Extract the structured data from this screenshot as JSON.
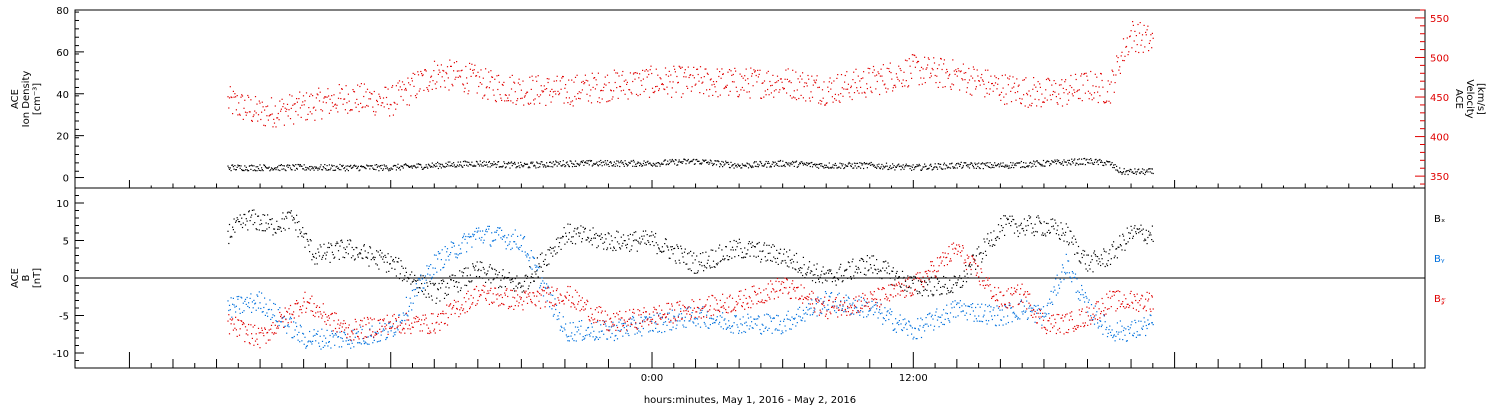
{
  "chart_data": [
    {
      "type": "scatter",
      "panel": "top",
      "ylabel_left": [
        "ACE",
        "Ion Density",
        "[cm⁻³]"
      ],
      "ylabel_right": [
        "ACE",
        "Velocity",
        "[km/s]"
      ],
      "ylim_left": [
        -5,
        80
      ],
      "ylim_right": [
        335,
        560
      ],
      "yticks_left": [
        0,
        20,
        40,
        60,
        80
      ],
      "yticks_right": [
        350,
        400,
        450,
        500,
        550
      ],
      "right_axis_color": "#e00000",
      "series": [
        {
          "name": "Velocity",
          "axis": "right",
          "color": "#e00000",
          "x": [
            -19.5,
            -18,
            -16,
            -14,
            -12,
            -10,
            -8.5,
            -7.5,
            -6,
            -4,
            -2,
            0,
            2,
            4,
            6,
            8,
            10,
            12,
            14,
            16,
            18,
            19,
            20,
            21,
            21.5,
            22,
            23
          ],
          "y": [
            445,
            430,
            438,
            450,
            445,
            480,
            475,
            465,
            460,
            458,
            465,
            470,
            470,
            468,
            470,
            460,
            470,
            485,
            478,
            462,
            455,
            458,
            465,
            460,
            500,
            530,
            520
          ]
        },
        {
          "name": "Ion Density",
          "axis": "left",
          "color": "#000000",
          "x": [
            -19.5,
            -18,
            -16,
            -14,
            -12,
            -10,
            -8,
            -6,
            -4,
            -2,
            0,
            2,
            4,
            6,
            8,
            10,
            12,
            14,
            16,
            18,
            20,
            21,
            21.5,
            22,
            23
          ],
          "y": [
            5,
            5,
            5,
            5,
            5,
            6,
            7,
            6,
            7,
            7,
            7,
            8,
            6,
            7,
            6,
            6,
            5,
            6,
            6,
            7,
            8,
            7,
            3,
            3,
            3
          ]
        }
      ]
    },
    {
      "type": "scatter",
      "panel": "bottom",
      "ylabel": [
        "ACE",
        "B",
        "[nT]"
      ],
      "ylim": [
        -12,
        12
      ],
      "yticks": [
        -10,
        -5,
        0,
        5,
        10
      ],
      "zero_line": true,
      "legend_position": "right",
      "legend": [
        "Bₓ",
        "Bᵧ",
        "B𝓏"
      ],
      "series": [
        {
          "name": "Bx",
          "color": "#000000",
          "x": [
            -19.5,
            -18.5,
            -17.5,
            -16.5,
            -15.5,
            -14,
            -12,
            -10,
            -8,
            -6,
            -4,
            -2,
            0,
            2,
            4,
            6,
            8,
            10,
            12,
            14,
            16,
            17,
            18,
            19,
            20,
            21,
            22,
            23
          ],
          "y": [
            6,
            8,
            7,
            8,
            3,
            4,
            2,
            -2,
            1,
            -1,
            6,
            5,
            5,
            2,
            4,
            3,
            0,
            2,
            -1,
            -1,
            7,
            7,
            7,
            6,
            2,
            3,
            6,
            6
          ]
        },
        {
          "name": "By",
          "color": "#0070dd",
          "x": [
            -19.5,
            -18,
            -16,
            -14,
            -12,
            -10,
            -8,
            -6,
            -4,
            -2,
            0,
            2,
            4,
            6,
            8,
            10,
            12,
            14,
            16,
            17,
            18,
            19,
            20,
            21,
            22,
            23
          ],
          "y": [
            -4,
            -3,
            -8,
            -8,
            -7,
            2,
            6,
            5,
            -7,
            -7,
            -6,
            -5,
            -6,
            -6,
            -3,
            -4,
            -7,
            -4,
            -5,
            -4,
            -5,
            2,
            -4,
            -7,
            -7,
            -6
          ]
        },
        {
          "name": "Bz",
          "color": "#e00000",
          "x": [
            -19.5,
            -18,
            -16,
            -14,
            -12,
            -10,
            -8,
            -6,
            -4,
            -2,
            0,
            2,
            4,
            6,
            8,
            10,
            12,
            14,
            16,
            17,
            18,
            19,
            20,
            21,
            22,
            23
          ],
          "y": [
            -6,
            -8,
            -3,
            -7,
            -6,
            -6,
            -2,
            -3,
            -2,
            -6,
            -5,
            -4,
            -3,
            -1,
            -4,
            -3,
            -1,
            4,
            -3,
            -2,
            -6,
            -6,
            -5,
            -3,
            -3,
            -3
          ]
        }
      ]
    }
  ],
  "axes": {
    "xlim_hours": [
      -26.5,
      35.5
    ],
    "xtick_labels": [
      "0:00",
      "12:00"
    ],
    "xlabel": "hours:minutes, May  1, 2016 - May  2, 2016"
  }
}
